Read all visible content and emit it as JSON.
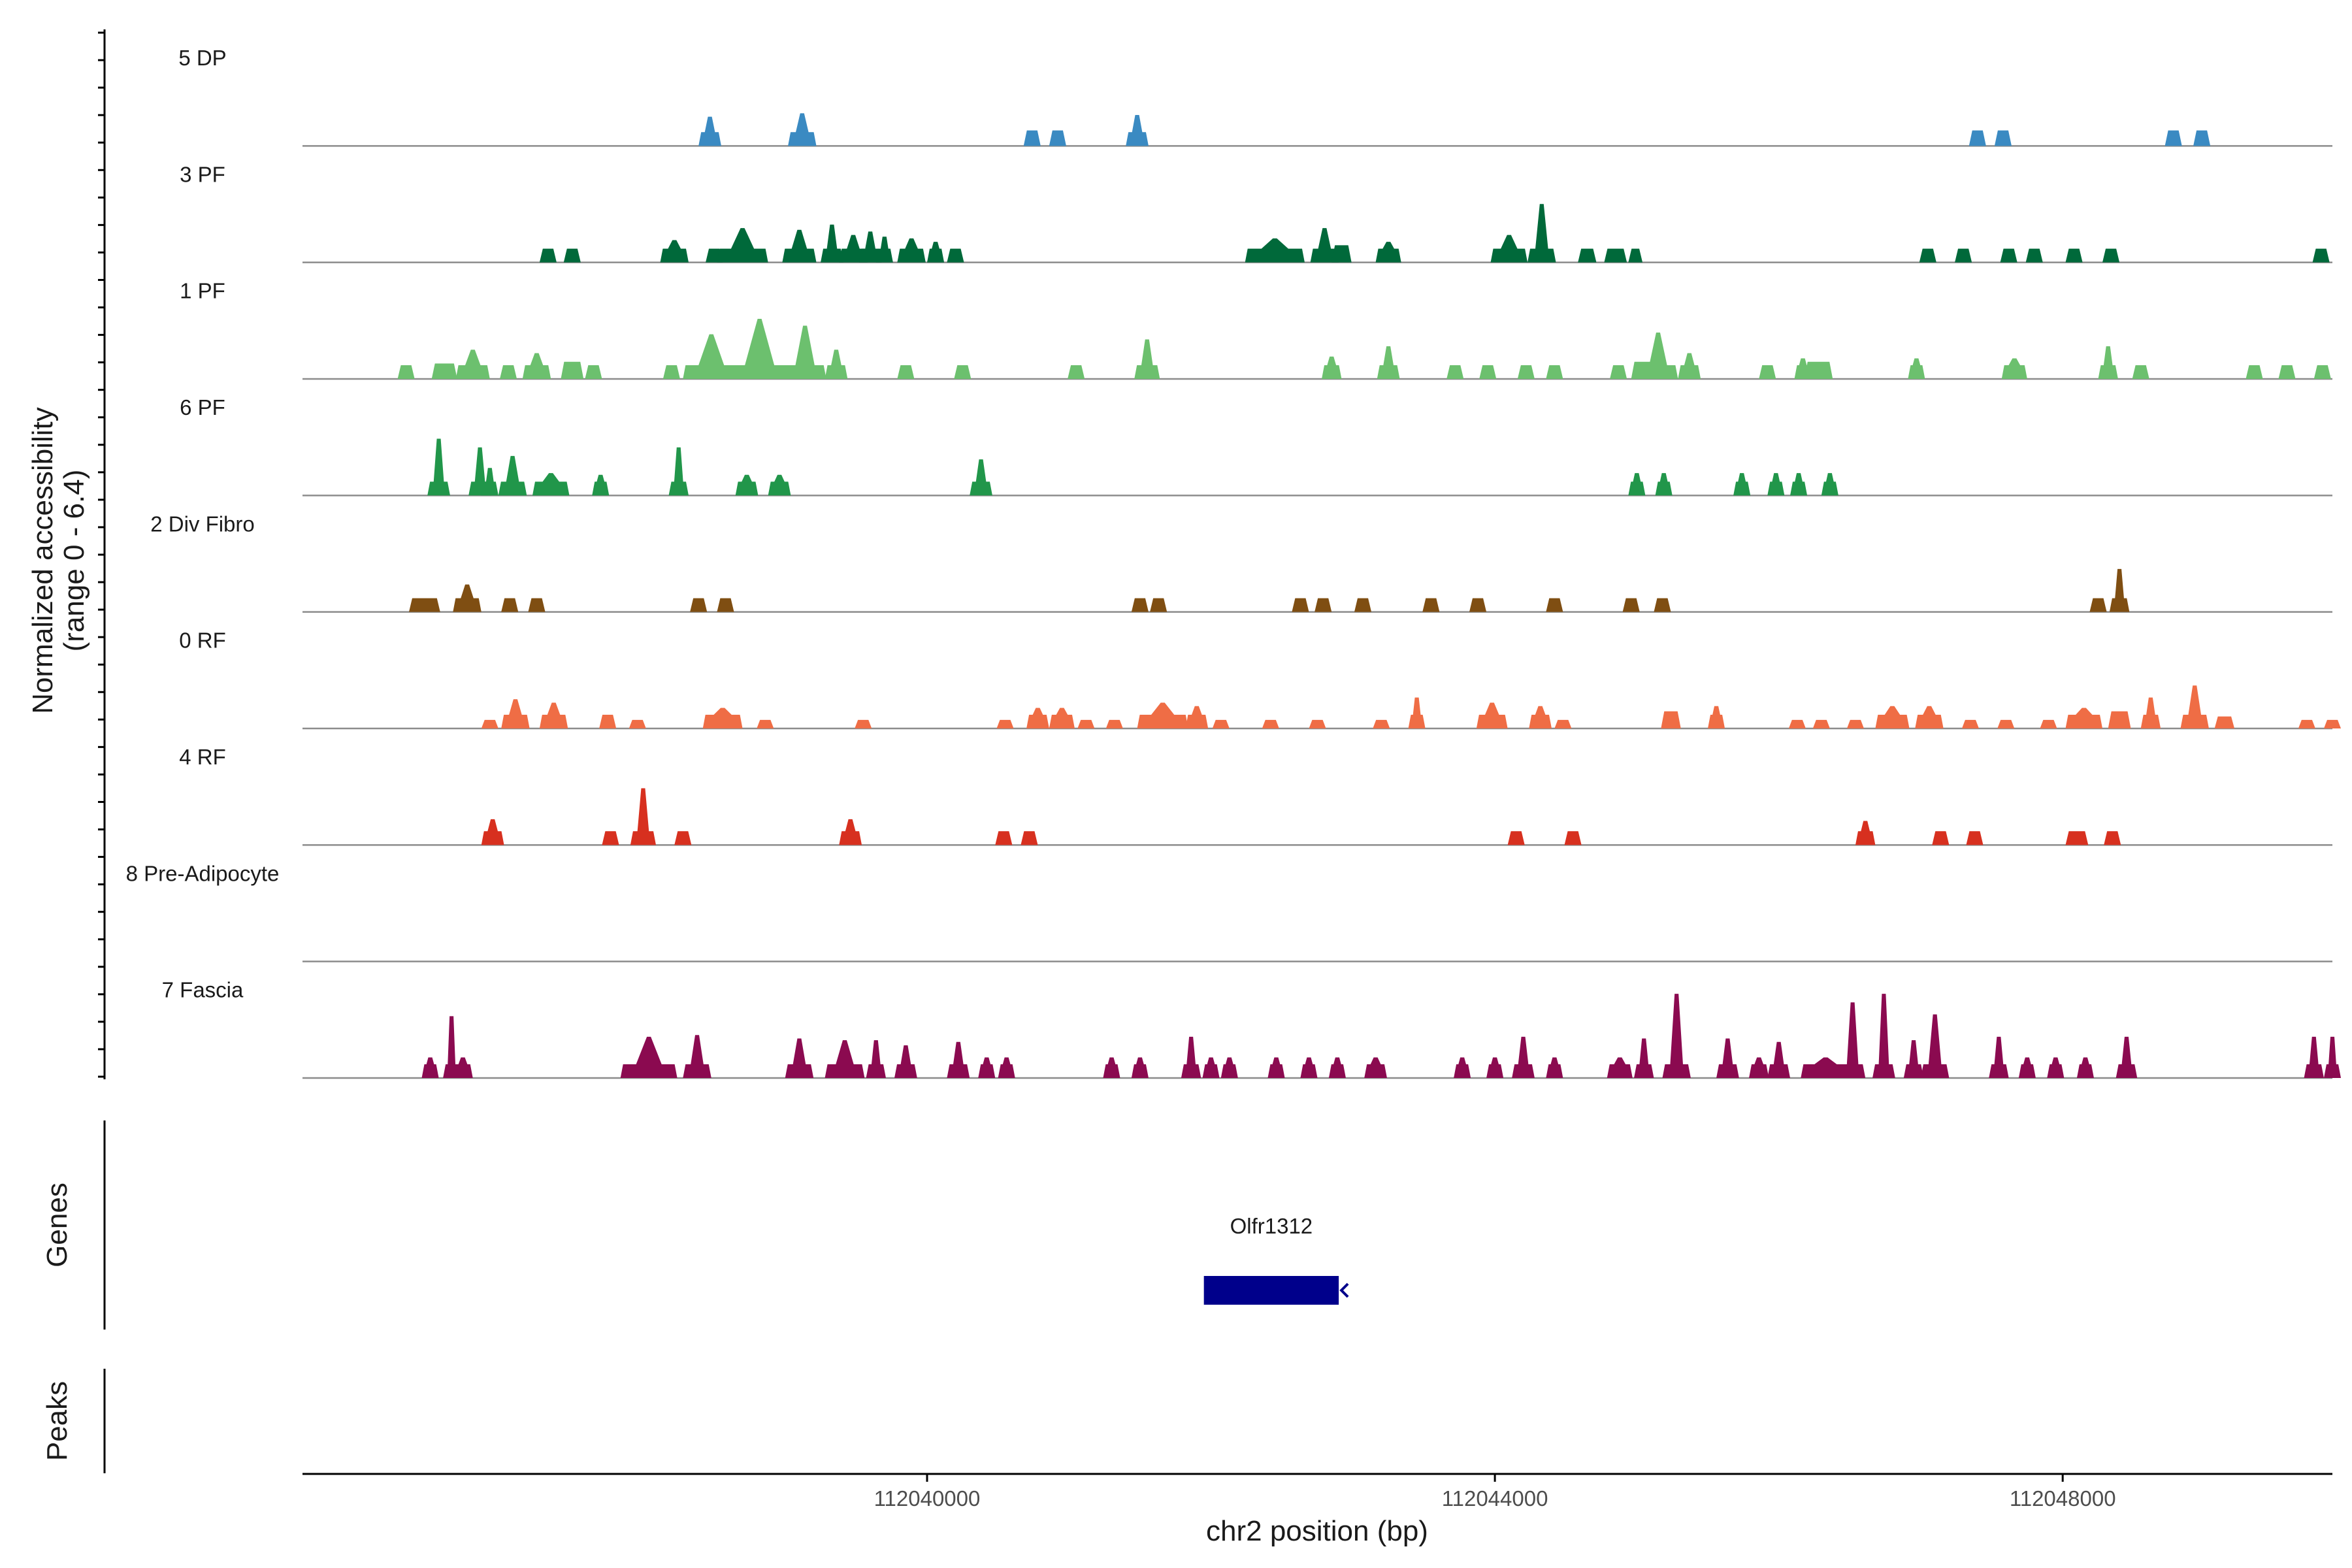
{
  "chart_data": {
    "type": "area",
    "subtype": "genome-coverage-tracks",
    "y_axis_title_line1": "Normalized accessibility",
    "y_axis_title_line2": "(range 0 - 6.4)",
    "y_range": [
      0,
      6.4
    ],
    "x_axis_title": "chr2 position (bp)",
    "x_range": [
      112035600,
      112049900
    ],
    "x_ticks": [
      112040000,
      112044000,
      112048000
    ],
    "x_tick_labels": [
      "112040000",
      "112044000",
      "112048000"
    ],
    "tracks": [
      {
        "name": "5 DP",
        "color": "#3a8ac2",
        "peaks": [
          [
            112038470,
            160,
            1.7
          ],
          [
            112039120,
            200,
            1.9
          ],
          [
            112040740,
            120,
            0.9
          ],
          [
            112040920,
            120,
            0.9
          ],
          [
            112041480,
            160,
            1.8
          ],
          [
            112047400,
            120,
            0.9
          ],
          [
            112047580,
            120,
            0.9
          ],
          [
            112048780,
            120,
            0.9
          ],
          [
            112048980,
            120,
            0.9
          ]
        ]
      },
      {
        "name": "3 PF",
        "color": "#00693a",
        "peaks": [
          [
            112037330,
            120,
            0.8
          ],
          [
            112037500,
            120,
            0.8
          ],
          [
            112038220,
            200,
            1.3
          ],
          [
            112038500,
            120,
            0.8
          ],
          [
            112038700,
            360,
            2.0
          ],
          [
            112039100,
            240,
            1.9
          ],
          [
            112039330,
            160,
            2.2
          ],
          [
            112039480,
            200,
            1.6
          ],
          [
            112039600,
            160,
            1.8
          ],
          [
            112039700,
            120,
            1.5
          ],
          [
            112039890,
            200,
            1.4
          ],
          [
            112040060,
            120,
            1.2
          ],
          [
            112040200,
            120,
            0.8
          ],
          [
            112042450,
            420,
            1.4
          ],
          [
            112042800,
            200,
            2.0
          ],
          [
            112042920,
            140,
            1.0
          ],
          [
            112043250,
            180,
            1.2
          ],
          [
            112044100,
            260,
            1.6
          ],
          [
            112044330,
            200,
            3.4
          ],
          [
            112044650,
            130,
            0.8
          ],
          [
            112044850,
            160,
            0.8
          ],
          [
            112044990,
            100,
            0.8
          ],
          [
            112047050,
            120,
            0.8
          ],
          [
            112047300,
            120,
            0.8
          ],
          [
            112047620,
            120,
            0.8
          ],
          [
            112047800,
            120,
            0.8
          ],
          [
            112048080,
            120,
            0.8
          ],
          [
            112048340,
            120,
            0.8
          ],
          [
            112049820,
            120,
            0.8
          ]
        ]
      },
      {
        "name": "1 PF",
        "color": "#6cc06e",
        "peaks": [
          [
            112036330,
            120,
            0.8
          ],
          [
            112036600,
            180,
            0.9
          ],
          [
            112036800,
            240,
            1.7
          ],
          [
            112037050,
            120,
            0.8
          ],
          [
            112037250,
            200,
            1.5
          ],
          [
            112037500,
            160,
            1.0
          ],
          [
            112037650,
            120,
            0.8
          ],
          [
            112038200,
            120,
            0.8
          ],
          [
            112038480,
            400,
            2.6
          ],
          [
            112038820,
            460,
            3.5
          ],
          [
            112039140,
            300,
            3.1
          ],
          [
            112039360,
            160,
            1.7
          ],
          [
            112039850,
            120,
            0.8
          ],
          [
            112040250,
            120,
            0.8
          ],
          [
            112041050,
            120,
            0.8
          ],
          [
            112041550,
            180,
            2.3
          ],
          [
            112042850,
            140,
            1.3
          ],
          [
            112043250,
            160,
            1.9
          ],
          [
            112043720,
            120,
            0.8
          ],
          [
            112043950,
            120,
            0.8
          ],
          [
            112044220,
            120,
            0.8
          ],
          [
            112044420,
            120,
            0.8
          ],
          [
            112044870,
            120,
            0.8
          ],
          [
            112045040,
            160,
            1.0
          ],
          [
            112045150,
            280,
            2.7
          ],
          [
            112045370,
            160,
            1.5
          ],
          [
            112045920,
            120,
            0.8
          ],
          [
            112046170,
            120,
            1.2
          ],
          [
            112046280,
            200,
            1.0
          ],
          [
            112046970,
            120,
            1.2
          ],
          [
            112047660,
            180,
            1.2
          ],
          [
            112048320,
            140,
            1.9
          ],
          [
            112048550,
            120,
            0.8
          ],
          [
            112049350,
            120,
            0.8
          ],
          [
            112049580,
            120,
            0.8
          ],
          [
            112049830,
            120,
            0.8
          ]
        ]
      },
      {
        "name": "6 PF",
        "color": "#21964a",
        "peaks": [
          [
            112036560,
            160,
            3.3
          ],
          [
            112036850,
            160,
            2.8
          ],
          [
            112036920,
            120,
            1.6
          ],
          [
            112037080,
            200,
            2.3
          ],
          [
            112037350,
            260,
            1.3
          ],
          [
            112037700,
            120,
            1.2
          ],
          [
            112038250,
            140,
            2.8
          ],
          [
            112038730,
            160,
            1.2
          ],
          [
            112038960,
            160,
            1.2
          ],
          [
            112040380,
            160,
            2.1
          ],
          [
            112045000,
            120,
            1.3
          ],
          [
            112045190,
            120,
            1.3
          ],
          [
            112045740,
            120,
            1.3
          ],
          [
            112045980,
            120,
            1.3
          ],
          [
            112046140,
            120,
            1.3
          ],
          [
            112046360,
            120,
            1.3
          ]
        ]
      },
      {
        "name": "2 Div Fibro",
        "color": "#7f4e12",
        "peaks": [
          [
            112036460,
            220,
            0.8
          ],
          [
            112036760,
            200,
            1.6
          ],
          [
            112037060,
            120,
            0.8
          ],
          [
            112037250,
            120,
            0.8
          ],
          [
            112038390,
            120,
            0.8
          ],
          [
            112038580,
            120,
            0.8
          ],
          [
            112041500,
            120,
            0.8
          ],
          [
            112041630,
            120,
            0.8
          ],
          [
            112042630,
            120,
            0.8
          ],
          [
            112042790,
            120,
            0.8
          ],
          [
            112043070,
            120,
            0.8
          ],
          [
            112043550,
            120,
            0.8
          ],
          [
            112043880,
            120,
            0.8
          ],
          [
            112044420,
            120,
            0.8
          ],
          [
            112044960,
            120,
            0.8
          ],
          [
            112045180,
            120,
            0.8
          ],
          [
            112048250,
            120,
            0.8
          ],
          [
            112048400,
            140,
            2.5
          ]
        ]
      },
      {
        "name": "0 RF",
        "color": "#ef6d45",
        "peaks": [
          [
            112036920,
            120,
            0.5
          ],
          [
            112037100,
            200,
            1.7
          ],
          [
            112037370,
            200,
            1.5
          ],
          [
            112037750,
            120,
            0.8
          ],
          [
            112037960,
            120,
            0.5
          ],
          [
            112038560,
            280,
            1.2
          ],
          [
            112038860,
            120,
            0.5
          ],
          [
            112039550,
            120,
            0.5
          ],
          [
            112040550,
            120,
            0.5
          ],
          [
            112040780,
            160,
            1.2
          ],
          [
            112040950,
            180,
            1.2
          ],
          [
            112041120,
            120,
            0.5
          ],
          [
            112041320,
            120,
            0.5
          ],
          [
            112041660,
            360,
            1.5
          ],
          [
            112041900,
            160,
            1.3
          ],
          [
            112042070,
            120,
            0.5
          ],
          [
            112042420,
            120,
            0.5
          ],
          [
            112042750,
            120,
            0.5
          ],
          [
            112043200,
            120,
            0.5
          ],
          [
            112043450,
            120,
            1.8
          ],
          [
            112043980,
            220,
            1.5
          ],
          [
            112044320,
            160,
            1.3
          ],
          [
            112044480,
            120,
            0.5
          ],
          [
            112045240,
            140,
            1.0
          ],
          [
            112045560,
            120,
            1.3
          ],
          [
            112046130,
            120,
            0.5
          ],
          [
            112046300,
            120,
            0.5
          ],
          [
            112046540,
            120,
            0.5
          ],
          [
            112046800,
            240,
            1.3
          ],
          [
            112047060,
            200,
            1.3
          ],
          [
            112047350,
            120,
            0.5
          ],
          [
            112047600,
            120,
            0.5
          ],
          [
            112047900,
            120,
            0.5
          ],
          [
            112048150,
            260,
            1.2
          ],
          [
            112048400,
            160,
            1.0
          ],
          [
            112048620,
            140,
            1.8
          ],
          [
            112048930,
            200,
            2.5
          ],
          [
            112049140,
            140,
            0.7
          ],
          [
            112049720,
            120,
            0.5
          ],
          [
            112049900,
            120,
            0.5
          ]
        ]
      },
      {
        "name": "4 RF",
        "color": "#d7301f",
        "peaks": [
          [
            112036940,
            160,
            1.5
          ],
          [
            112037770,
            120,
            0.8
          ],
          [
            112038000,
            180,
            3.3
          ],
          [
            112038280,
            120,
            0.8
          ],
          [
            112039460,
            160,
            1.5
          ],
          [
            112040540,
            120,
            0.8
          ],
          [
            112040720,
            120,
            0.8
          ],
          [
            112044150,
            120,
            0.8
          ],
          [
            112044550,
            120,
            0.8
          ],
          [
            112046610,
            140,
            1.4
          ],
          [
            112047140,
            120,
            0.8
          ],
          [
            112047380,
            120,
            0.8
          ],
          [
            112048100,
            160,
            0.8
          ],
          [
            112048350,
            120,
            0.8
          ]
        ]
      },
      {
        "name": "8 Pre-Adipocyte",
        "color": "#7a7a7a",
        "peaks": []
      },
      {
        "name": "7 Fascia",
        "color": "#8b0a50",
        "peaks": [
          [
            112036500,
            120,
            1.2
          ],
          [
            112036650,
            120,
            3.6
          ],
          [
            112036730,
            140,
            1.2
          ],
          [
            112038040,
            400,
            2.4
          ],
          [
            112038380,
            200,
            2.5
          ],
          [
            112039100,
            200,
            2.3
          ],
          [
            112039420,
            280,
            2.2
          ],
          [
            112039640,
            140,
            2.2
          ],
          [
            112039850,
            160,
            1.9
          ],
          [
            112040220,
            160,
            2.1
          ],
          [
            112040420,
            120,
            1.2
          ],
          [
            112040560,
            120,
            1.2
          ],
          [
            112041300,
            120,
            1.2
          ],
          [
            112041500,
            120,
            1.2
          ],
          [
            112041860,
            140,
            2.4
          ],
          [
            112042000,
            120,
            1.2
          ],
          [
            112042130,
            120,
            1.2
          ],
          [
            112042460,
            120,
            1.2
          ],
          [
            112042690,
            120,
            1.2
          ],
          [
            112042890,
            120,
            1.2
          ],
          [
            112043160,
            160,
            1.2
          ],
          [
            112043770,
            120,
            1.2
          ],
          [
            112044000,
            120,
            1.2
          ],
          [
            112044200,
            160,
            2.4
          ],
          [
            112044420,
            120,
            1.2
          ],
          [
            112044880,
            180,
            1.2
          ],
          [
            112045050,
            140,
            2.3
          ],
          [
            112045280,
            200,
            4.9
          ],
          [
            112045640,
            160,
            2.3
          ],
          [
            112045860,
            140,
            1.2
          ],
          [
            112046000,
            160,
            2.1
          ],
          [
            112046330,
            350,
            1.2
          ],
          [
            112046520,
            180,
            4.4
          ],
          [
            112046740,
            160,
            4.9
          ],
          [
            112046950,
            140,
            2.2
          ],
          [
            112047100,
            200,
            3.7
          ],
          [
            112047550,
            140,
            2.4
          ],
          [
            112047750,
            120,
            1.2
          ],
          [
            112047950,
            120,
            1.2
          ],
          [
            112048160,
            120,
            1.2
          ],
          [
            112048450,
            150,
            2.4
          ],
          [
            112049770,
            140,
            2.4
          ],
          [
            112049900,
            120,
            2.4
          ]
        ]
      }
    ],
    "gene_track_title": "Genes",
    "genes": [
      {
        "name": "Olfr1312",
        "start": 112041950,
        "end": 112042900,
        "strand": "-"
      }
    ],
    "peaks_track_title": "Peaks"
  }
}
